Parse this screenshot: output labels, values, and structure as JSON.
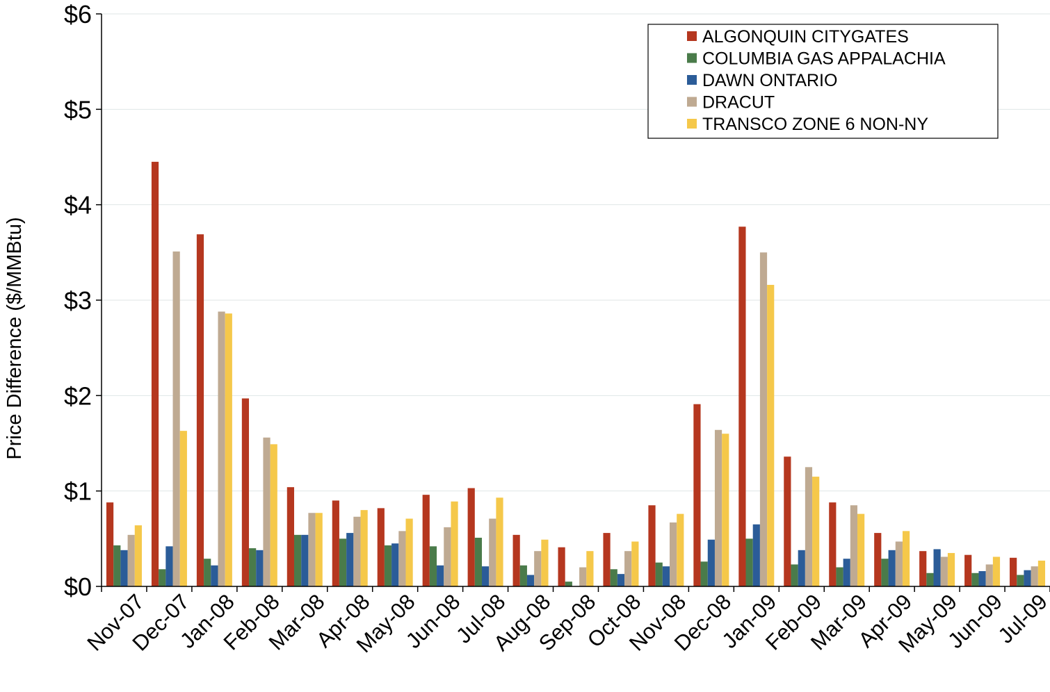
{
  "chart_data": {
    "type": "bar",
    "title": "",
    "xlabel": "",
    "ylabel": "Price Difference  ($/MMBtu)",
    "ylim": [
      0,
      6
    ],
    "yticks": [
      "$0",
      "$1",
      "$2",
      "$3",
      "$4",
      "$5",
      "$6"
    ],
    "grid": true,
    "legend_position": "top-right",
    "categories": [
      "Nov-07",
      "Dec-07",
      "Jan-08",
      "Feb-08",
      "Mar-08",
      "Apr-08",
      "May-08",
      "Jun-08",
      "Jul-08",
      "Aug-08",
      "Sep-08",
      "Oct-08",
      "Nov-08",
      "Dec-08",
      "Jan-09",
      "Feb-09",
      "Mar-09",
      "Apr-09",
      "May-09",
      "Jun-09",
      "Jul-09"
    ],
    "x_tick_labels": [
      "Nov-07",
      "Dec-07",
      "Jan-08",
      "Feb-08",
      "Mar-08",
      "Apr-08",
      "May-08",
      "Jun-08",
      "Jul-08",
      "Aug-08",
      "Sep-08",
      "Oct-08",
      "Nov-08",
      "Dec-08",
      "Jan-09",
      "Feb-09",
      "Mar-09",
      "Apr-09",
      "May-09",
      "Jun-09",
      "Jul-09"
    ],
    "series": [
      {
        "name": "ALGONQUIN CITYGATES",
        "color": "#B5371F",
        "values": [
          0.88,
          4.45,
          3.69,
          1.97,
          1.04,
          0.9,
          0.82,
          0.96,
          1.03,
          0.54,
          0.41,
          0.56,
          0.85,
          1.91,
          3.77,
          1.36,
          0.88,
          0.56,
          0.37,
          0.33,
          0.3
        ]
      },
      {
        "name": "COLUMBIA GAS APPALACHIA",
        "color": "#4A7B4A",
        "values": [
          0.43,
          0.18,
          0.29,
          0.4,
          0.54,
          0.5,
          0.43,
          0.42,
          0.51,
          0.22,
          0.05,
          0.18,
          0.25,
          0.26,
          0.5,
          0.23,
          0.2,
          0.29,
          0.14,
          0.14,
          0.12
        ]
      },
      {
        "name": "DAWN ONTARIO",
        "color": "#2B5C98",
        "values": [
          0.38,
          0.42,
          0.22,
          0.38,
          0.54,
          0.56,
          0.45,
          0.22,
          0.21,
          0.12,
          0.0,
          0.13,
          0.21,
          0.49,
          0.65,
          0.38,
          0.29,
          0.38,
          0.39,
          0.16,
          0.17
        ]
      },
      {
        "name": "DRACUT",
        "color": "#BFAA92",
        "values": [
          0.54,
          3.51,
          2.88,
          1.56,
          0.77,
          0.73,
          0.58,
          0.62,
          0.71,
          0.37,
          0.2,
          0.37,
          0.67,
          1.64,
          3.5,
          1.25,
          0.85,
          0.47,
          0.31,
          0.23,
          0.21
        ]
      },
      {
        "name": "TRANSCO ZONE 6 NON-NY",
        "color": "#F5C84A",
        "values": [
          0.64,
          1.63,
          2.86,
          1.49,
          0.77,
          0.8,
          0.71,
          0.89,
          0.93,
          0.49,
          0.37,
          0.47,
          0.76,
          1.6,
          3.16,
          1.15,
          0.76,
          0.58,
          0.35,
          0.31,
          0.27
        ]
      }
    ]
  }
}
